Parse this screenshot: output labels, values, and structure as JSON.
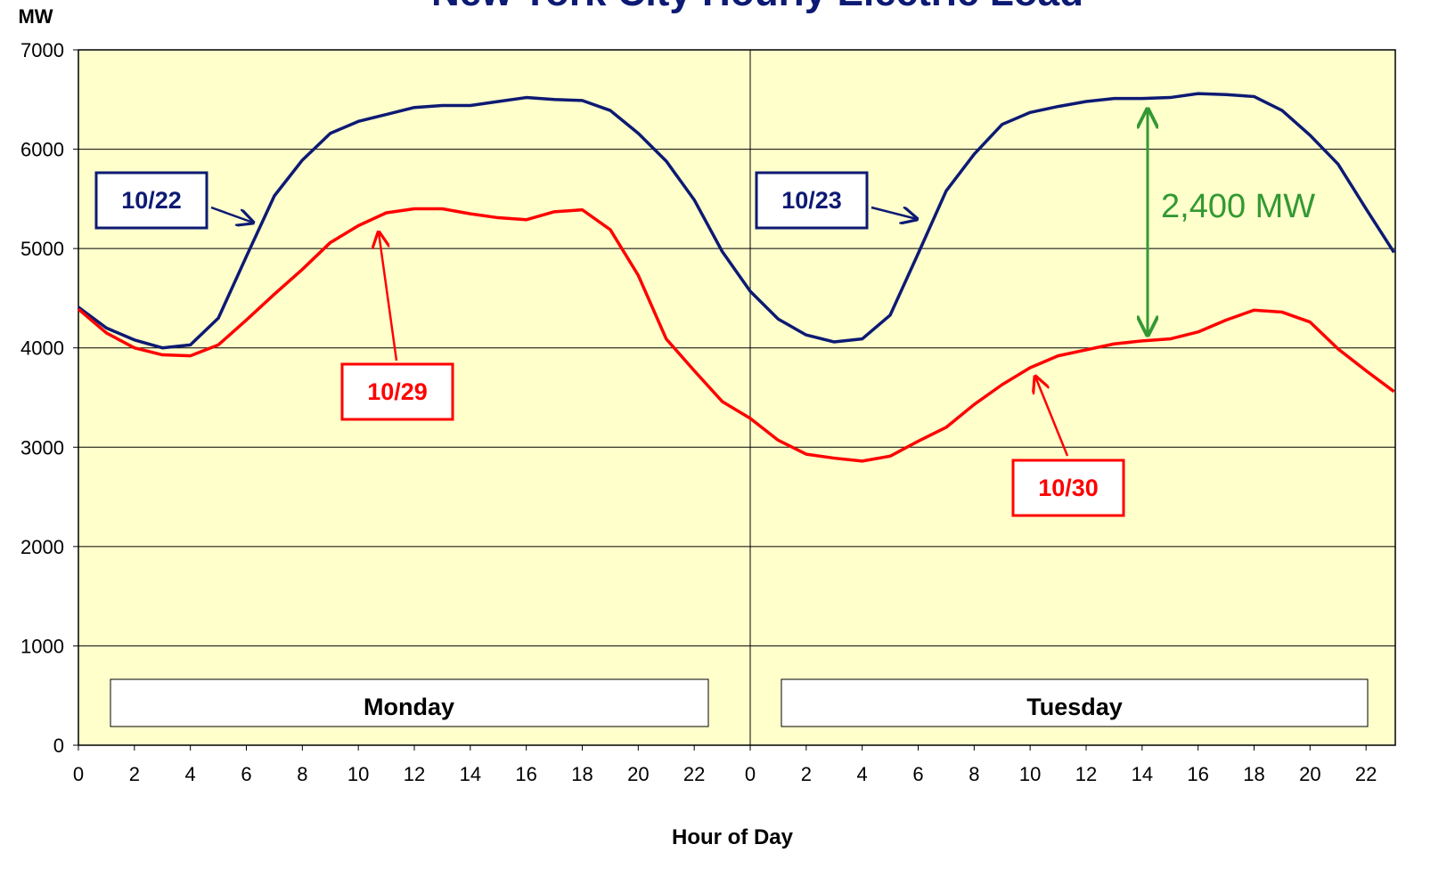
{
  "chart_data": {
    "type": "line",
    "title": "New York City Hourly Electric Load",
    "y_label": "MW",
    "x_label": "Hour of Day",
    "annotations": [
      "2,400 MW"
    ],
    "day_labels": [
      "Monday",
      "Tuesday"
    ],
    "xlim": [
      0,
      47
    ],
    "ylim": [
      0,
      7000
    ],
    "yticks": [
      0,
      1000,
      2000,
      3000,
      4000,
      5000,
      6000,
      7000
    ],
    "xticks": [
      0,
      2,
      4,
      6,
      8,
      10,
      12,
      14,
      16,
      18,
      20,
      22,
      {
        "value": 24,
        "label": "0"
      },
      {
        "value": 26,
        "label": "2"
      },
      {
        "value": 28,
        "label": "4"
      },
      {
        "value": 30,
        "label": "6"
      },
      {
        "value": 32,
        "label": "8"
      },
      {
        "value": 34,
        "label": "10"
      },
      {
        "value": 36,
        "label": "12"
      },
      {
        "value": 38,
        "label": "14"
      },
      {
        "value": 40,
        "label": "16"
      },
      {
        "value": 42,
        "label": "18"
      },
      {
        "value": 44,
        "label": "20"
      },
      {
        "value": 46,
        "label": "22"
      }
    ],
    "grid": true,
    "series": [
      {
        "name": "10/22",
        "color": "#0d1a73",
        "x": [
          0,
          1,
          2,
          3,
          4,
          5,
          6,
          7,
          8,
          9,
          10,
          11,
          12,
          13,
          14,
          15,
          16,
          17,
          18,
          19,
          20,
          21,
          22,
          23
        ],
        "values": [
          4410,
          4200,
          4080,
          4000,
          4030,
          4300,
          4920,
          5530,
          5890,
          6160,
          6280,
          6350,
          6420,
          6440,
          6440,
          6480,
          6520,
          6500,
          6490,
          6390,
          6160,
          5880,
          5490,
          4970
        ]
      },
      {
        "name": "10/23",
        "color": "#0d1a73",
        "x": [
          24,
          25,
          26,
          27,
          28,
          29,
          30,
          31,
          32,
          33,
          34,
          35,
          36,
          37,
          38,
          39,
          40,
          41,
          42,
          43,
          44,
          45,
          46,
          47
        ],
        "values": [
          4570,
          4290,
          4130,
          4060,
          4090,
          4330,
          4950,
          5580,
          5950,
          6250,
          6370,
          6430,
          6480,
          6510,
          6510,
          6520,
          6560,
          6550,
          6530,
          6390,
          6140,
          5850,
          5400,
          4960
        ]
      },
      {
        "name": "10/29",
        "color": "#ff0000",
        "x": [
          0,
          1,
          2,
          3,
          4,
          5,
          6,
          7,
          8,
          9,
          10,
          11,
          12,
          13,
          14,
          15,
          16,
          17,
          18,
          19,
          20,
          21,
          22,
          23
        ],
        "values": [
          4390,
          4150,
          4000,
          3930,
          3920,
          4030,
          4280,
          4540,
          4790,
          5060,
          5230,
          5360,
          5400,
          5400,
          5350,
          5310,
          5290,
          5370,
          5390,
          5190,
          4730,
          4090,
          3770,
          3460
        ]
      },
      {
        "name": "10/30",
        "color": "#ff0000",
        "x": [
          24,
          25,
          26,
          27,
          28,
          29,
          30,
          31,
          32,
          33,
          34,
          35,
          36,
          37,
          38,
          39,
          40,
          41,
          42,
          43,
          44,
          45,
          46,
          47
        ],
        "values": [
          3290,
          3070,
          2930,
          2890,
          2860,
          2910,
          3060,
          3200,
          3430,
          3630,
          3800,
          3920,
          3980,
          4040,
          4070,
          4090,
          4160,
          4280,
          4380,
          4360,
          4260,
          3990,
          3770,
          3560
        ]
      }
    ]
  }
}
